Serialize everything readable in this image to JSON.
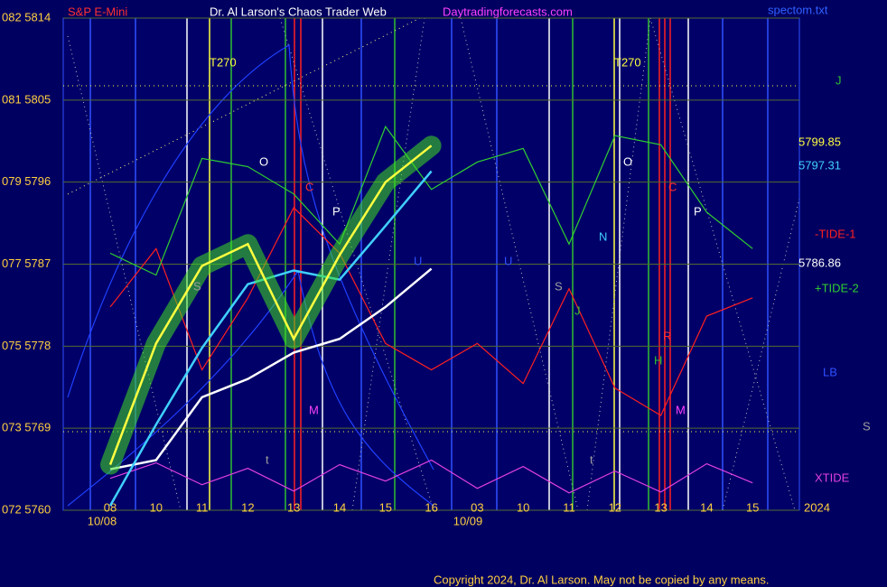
{
  "chart_data": {
    "type": "line",
    "header_texts": [
      {
        "text": "S&P E-Mini",
        "color": "#ff3030"
      },
      {
        "text": "Dr. Al Larson's Chaos Trader Web",
        "color": "#ffffff"
      },
      {
        "text": "Daytradingforecasts.com",
        "color": "#ff40ff"
      },
      {
        "text": "spectom.txt",
        "color": "#3060ff"
      }
    ],
    "copyright": "Copyright 2024, Dr. Al Larson. May not be copied by any means.",
    "categories": [
      "08",
      "10",
      "11",
      "12",
      "13",
      "14",
      "15",
      "16",
      "03",
      "10",
      "11",
      "12",
      "13",
      "14",
      "15"
    ],
    "dates": [
      "10/08",
      "10/09"
    ],
    "year": "2024",
    "ylim": [
      5760,
      5814
    ],
    "yticks": [
      {
        "value": 5760,
        "label": "072  5760"
      },
      {
        "value": 5769,
        "label": "073  5769"
      },
      {
        "value": 5778,
        "label": "075  5778"
      },
      {
        "value": 5787,
        "label": "077  5787"
      },
      {
        "value": 5796,
        "label": "079  5796"
      },
      {
        "value": 5805,
        "label": "081  5805"
      },
      {
        "value": 5814,
        "label": "082  5814"
      }
    ],
    "grid": true,
    "series": [
      {
        "color": "#ff2020",
        "name": "-TIDE-1",
        "values": [
          5782.3,
          5788.7,
          5775.4,
          5783.3,
          5793.2,
          5788.2,
          5778.3,
          5775.4,
          5778.3,
          5773.9,
          5784.3,
          5773.4,
          5770.4,
          5781.3,
          5783.3
        ]
      },
      {
        "color": "#30d030",
        "name": "+TIDE-2",
        "values": [
          5788.2,
          5785.8,
          5798.6,
          5797.7,
          5794.7,
          5789.2,
          5802.1,
          5795.2,
          5798.2,
          5799.7,
          5789.2,
          5801.1,
          5800.1,
          5792.7,
          5788.7
        ]
      },
      {
        "color": "#e040e0",
        "name": "XTIDE",
        "values": [
          5763.5,
          5765.2,
          5762.8,
          5764.6,
          5762.1,
          5765.0,
          5763.2,
          5765.5,
          5762.4,
          5764.8,
          5761.9,
          5764.3,
          5762.0,
          5765.1,
          5763.0
        ]
      },
      {
        "color": "#ffffff",
        "end_label": "5786.86",
        "values": [
          5764.5,
          5765.5,
          5772.4,
          5774.4,
          5777.3,
          5778.8,
          5782.3,
          5786.5,
          null,
          null,
          null,
          null,
          null,
          null,
          null
        ]
      },
      {
        "color": "#40d0ff",
        "end_label": "5797.31",
        "values": [
          5760.5,
          5769.4,
          5777.8,
          5784.8,
          5786.3,
          5785.3,
          5791.2,
          5797.2,
          null,
          null,
          null,
          null,
          null,
          null,
          null
        ]
      },
      {
        "color": "#ffff40",
        "end_label": "5799.85",
        "values": [
          5765,
          5778.3,
          5786.8,
          5789.2,
          5778.8,
          5788,
          5796,
          5800,
          null,
          null,
          null,
          null,
          null,
          null,
          null
        ]
      }
    ],
    "annotations": [
      {
        "text": "T270",
        "color": "#ffff40"
      },
      {
        "text": "T270",
        "color": "#ffff40"
      },
      {
        "text": "O",
        "color": "#ffffff"
      },
      {
        "text": "O",
        "color": "#ffffff"
      },
      {
        "text": "C",
        "color": "#ff3030"
      },
      {
        "text": "C",
        "color": "#ff3030"
      },
      {
        "text": "P",
        "color": "#ffffff"
      },
      {
        "text": "P",
        "color": "#ffffff"
      },
      {
        "text": "S",
        "color": "#a0a0a0"
      },
      {
        "text": "S",
        "color": "#a0a0a0"
      },
      {
        "text": "N",
        "color": "#40d0ff"
      },
      {
        "text": "J",
        "color": "#30c030"
      },
      {
        "text": "H",
        "color": "#30c030"
      },
      {
        "text": "R",
        "color": "#ff3030"
      },
      {
        "text": "M",
        "color": "#ff40ff"
      },
      {
        "text": "M",
        "color": "#ff40ff"
      },
      {
        "text": "U",
        "color": "#3050ff"
      },
      {
        "text": "U",
        "color": "#3050ff"
      },
      {
        "text": "t",
        "color": "#a0a0a0"
      },
      {
        "text": "t",
        "color": "#a0a0a0"
      },
      {
        "text": "J",
        "color": "#30c030"
      },
      {
        "text": "LB",
        "color": "#3050ff"
      },
      {
        "text": "S",
        "color": "#a0a0a0"
      }
    ]
  }
}
